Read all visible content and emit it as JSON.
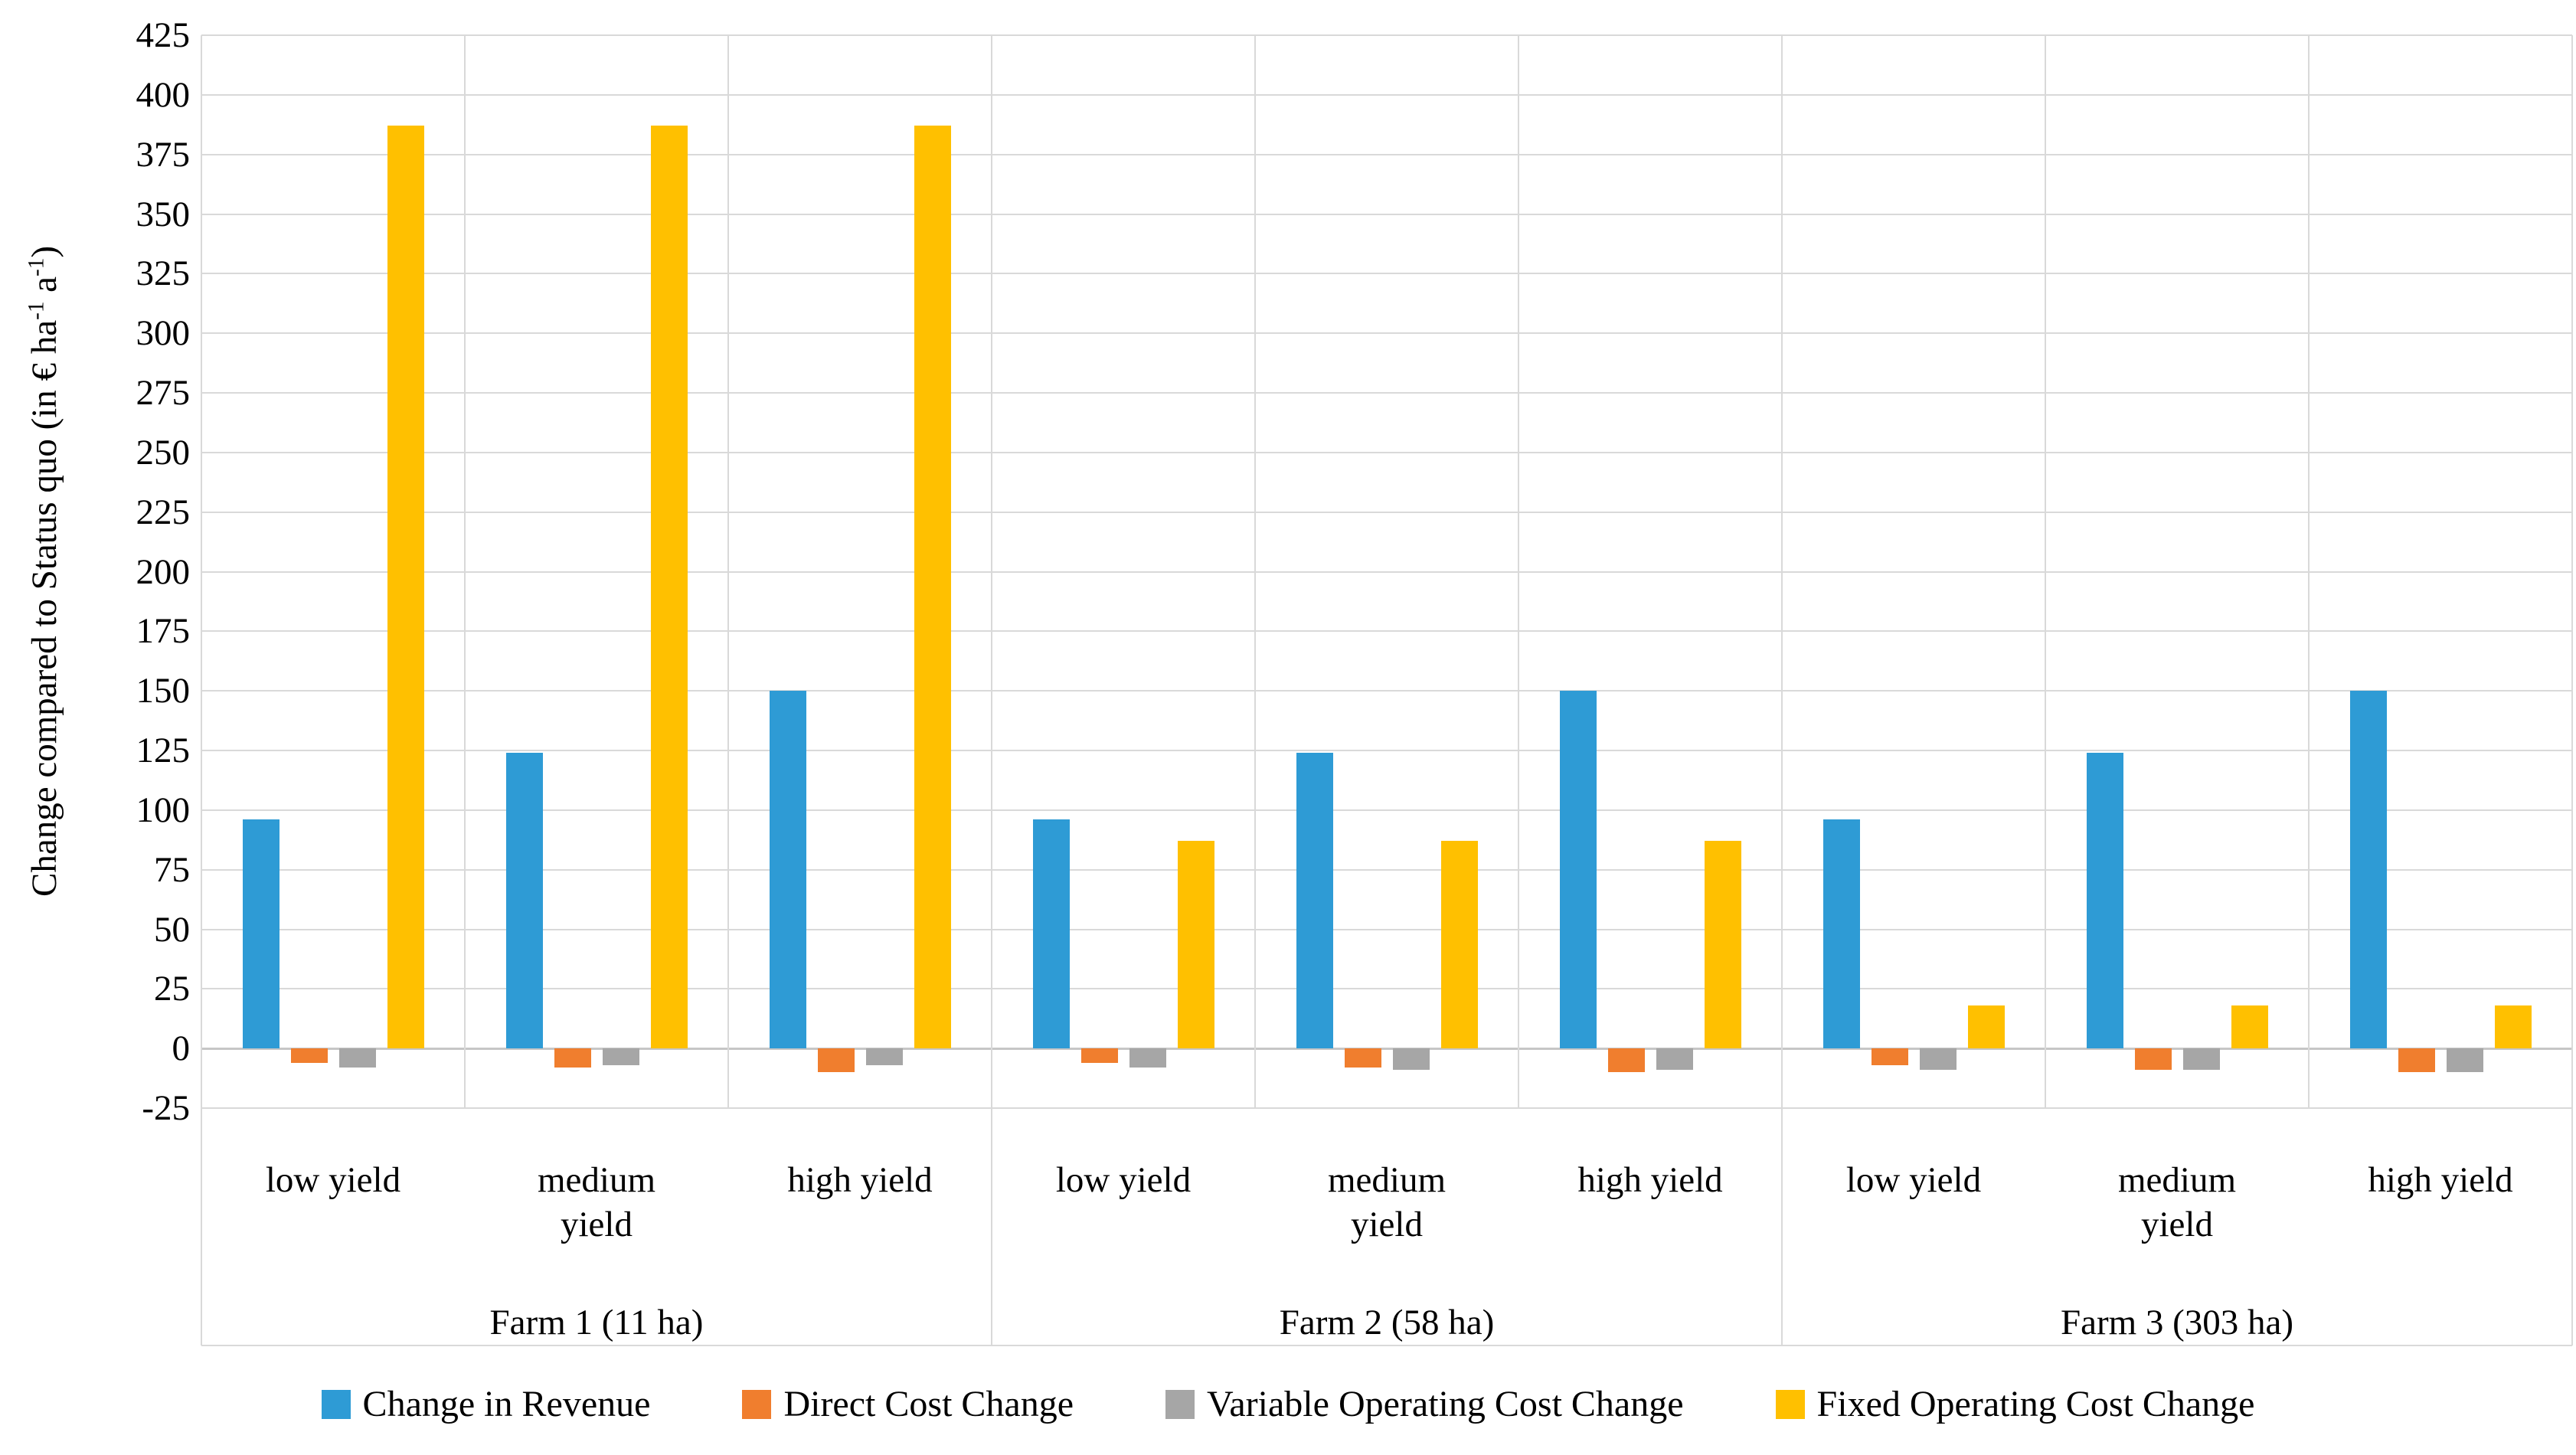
{
  "chart_data": {
    "type": "bar",
    "title": "",
    "ylabel": "Change compared to Status quo (in € ha⁻¹ a⁻¹)",
    "ylabel_parts": {
      "prefix": "Change compared to Status quo (in € ha",
      "sup1": "-1",
      "mid": " a",
      "sup2": "-1",
      "suffix": ")"
    },
    "ylim": [
      -25,
      425
    ],
    "ytick_step": 25,
    "yticks": [
      425,
      400,
      375,
      350,
      325,
      300,
      275,
      250,
      225,
      200,
      175,
      150,
      125,
      100,
      75,
      50,
      25,
      0,
      -25
    ],
    "grid": "horizontal",
    "grid_color": "#D9D9D9",
    "axis_color": "#C6C6C6",
    "legend_position": "bottom",
    "series": [
      {
        "key": "revenue",
        "name": "Change in Revenue",
        "color": "#2E9BD5"
      },
      {
        "key": "direct",
        "name": "Direct Cost Change",
        "color": "#F07E2E"
      },
      {
        "key": "variable",
        "name": "Variable Operating Cost Change",
        "color": "#A6A6A6"
      },
      {
        "key": "fixed",
        "name": "Fixed Operating Cost Change",
        "color": "#FFC000"
      }
    ],
    "farms": [
      {
        "label": "Farm 1 (11 ha)",
        "categories": [
          {
            "label": "low yield",
            "label_lines": [
              "low yield"
            ],
            "revenue": 96,
            "direct": -6,
            "variable": -8,
            "fixed": 387
          },
          {
            "label": "medium yield",
            "label_lines": [
              "medium",
              "yield"
            ],
            "revenue": 124,
            "direct": -8,
            "variable": -7,
            "fixed": 387
          },
          {
            "label": "high yield",
            "label_lines": [
              "high yield"
            ],
            "revenue": 150,
            "direct": -10,
            "variable": -7,
            "fixed": 387
          }
        ]
      },
      {
        "label": "Farm 2 (58 ha)",
        "categories": [
          {
            "label": "low yield",
            "label_lines": [
              "low yield"
            ],
            "revenue": 96,
            "direct": -6,
            "variable": -8,
            "fixed": 87
          },
          {
            "label": "medium yield",
            "label_lines": [
              "medium",
              "yield"
            ],
            "revenue": 124,
            "direct": -8,
            "variable": -9,
            "fixed": 87
          },
          {
            "label": "high yield",
            "label_lines": [
              "high yield"
            ],
            "revenue": 150,
            "direct": -10,
            "variable": -9,
            "fixed": 87
          }
        ]
      },
      {
        "label": "Farm 3 (303 ha)",
        "categories": [
          {
            "label": "low yield",
            "label_lines": [
              "low yield"
            ],
            "revenue": 96,
            "direct": -7,
            "variable": -9,
            "fixed": 18
          },
          {
            "label": "medium yield",
            "label_lines": [
              "medium",
              "yield"
            ],
            "revenue": 124,
            "direct": -9,
            "variable": -9,
            "fixed": 18
          },
          {
            "label": "high yield",
            "label_lines": [
              "high yield"
            ],
            "revenue": 150,
            "direct": -10,
            "variable": -10,
            "fixed": 18
          }
        ]
      }
    ]
  }
}
